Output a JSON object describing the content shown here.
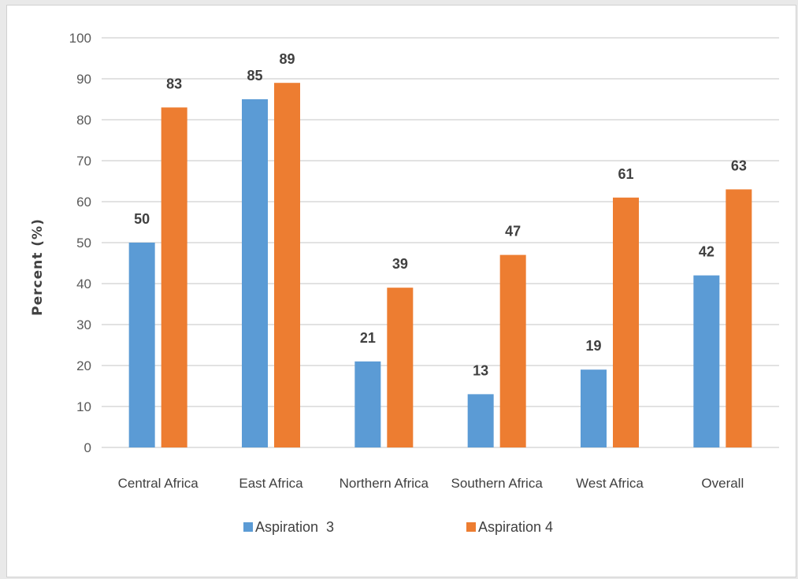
{
  "chart_data": {
    "type": "bar",
    "title": "",
    "xlabel": "",
    "ylabel": "Percent (%)",
    "ylim": [
      0,
      100
    ],
    "yticks": [
      0,
      10,
      20,
      30,
      40,
      50,
      60,
      70,
      80,
      90,
      100
    ],
    "grid": true,
    "legend_position": "bottom",
    "categories": [
      "Central Africa",
      "East Africa",
      "Northern Africa",
      "Southern Africa",
      "West Africa",
      "Overall"
    ],
    "series": [
      {
        "name": "Aspiration  3",
        "color": "#5b9bd5",
        "values": [
          50,
          85,
          21,
          13,
          19,
          42
        ]
      },
      {
        "name": "Aspiration 4",
        "color": "#ed7d31",
        "values": [
          83,
          89,
          39,
          47,
          61,
          63
        ]
      }
    ],
    "data_label_color": "#404040",
    "gridline_color": "#d9d9d9"
  }
}
